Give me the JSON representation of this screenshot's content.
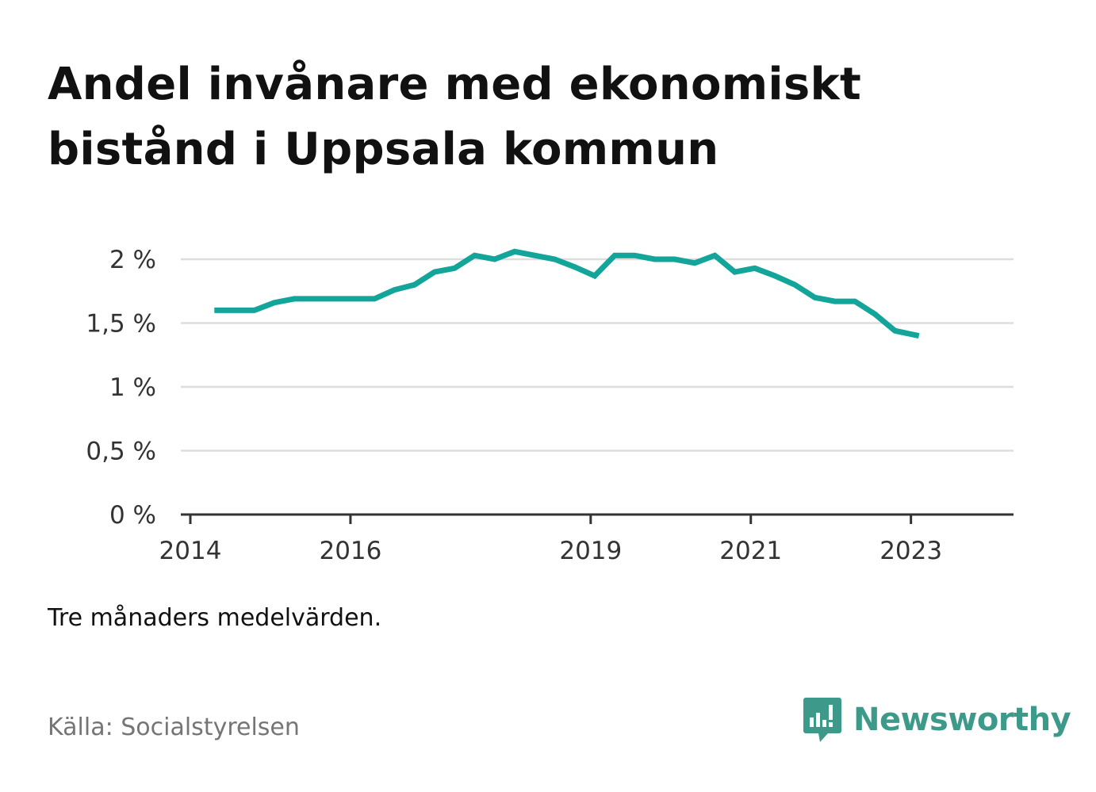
{
  "title": "Andel invånare med ekonomiskt bistånd i Uppsala kommun",
  "note": "Tre månaders medelvärden.",
  "source": "Källa: Socialstyrelsen",
  "brand": {
    "name": "Newsworthy",
    "icon": "newsworthy-logo-icon",
    "color": "#3d9a8b"
  },
  "colors": {
    "line": "#13a59a",
    "grid": "#dddddd",
    "axis": "#333333"
  },
  "chart_data": {
    "type": "line",
    "title": "Andel invånare med ekonomiskt bistånd i Uppsala kommun",
    "xlabel": "",
    "ylabel": "",
    "ylim": [
      0,
      2
    ],
    "xlim": [
      2014,
      2024.4
    ],
    "grid": true,
    "yticks": [
      {
        "value": 0,
        "label": "0 %"
      },
      {
        "value": 0.5,
        "label": "0,5 %"
      },
      {
        "value": 1,
        "label": "1 %"
      },
      {
        "value": 1.5,
        "label": "1,5 %"
      },
      {
        "value": 2,
        "label": "2 %"
      }
    ],
    "xticks": [
      {
        "value": 2014,
        "label": "2014"
      },
      {
        "value": 2016,
        "label": "2016"
      },
      {
        "value": 2019,
        "label": "2019"
      },
      {
        "value": 2021,
        "label": "2021"
      },
      {
        "value": 2023,
        "label": "2023"
      }
    ],
    "series": [
      {
        "color": "#13a59a",
        "x": [
          2014.3,
          2014.55,
          2014.8,
          2015.05,
          2015.3,
          2015.55,
          2015.8,
          2016.05,
          2016.3,
          2016.55,
          2016.8,
          2017.05,
          2017.3,
          2017.55,
          2017.8,
          2018.05,
          2018.3,
          2018.55,
          2018.8,
          2019.05,
          2019.3,
          2019.55,
          2019.8,
          2020.05,
          2020.3,
          2020.55,
          2020.8,
          2021.05,
          2021.3,
          2021.55,
          2021.8,
          2022.05,
          2022.3,
          2022.55,
          2022.8,
          2023.1
        ],
        "y": [
          1.6,
          1.6,
          1.6,
          1.66,
          1.69,
          1.69,
          1.69,
          1.69,
          1.69,
          1.76,
          1.8,
          1.9,
          1.93,
          2.03,
          2.0,
          2.06,
          2.03,
          2.0,
          1.94,
          1.87,
          2.03,
          2.03,
          2.0,
          2.0,
          1.97,
          2.03,
          1.9,
          1.93,
          1.87,
          1.8,
          1.7,
          1.67,
          1.67,
          1.57,
          1.44,
          1.4
        ]
      }
    ]
  }
}
